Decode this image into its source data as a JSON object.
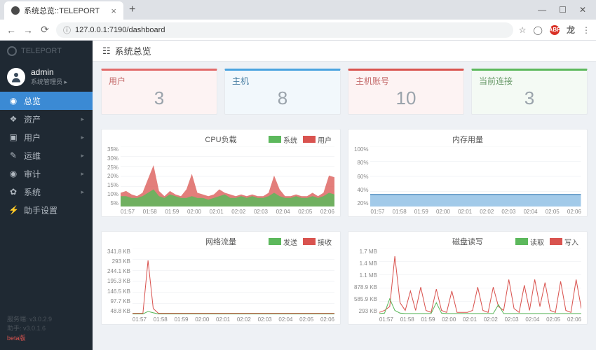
{
  "browser": {
    "tab_title": "系统总览::TELEPORT",
    "url": "127.0.0.1:7190/dashboard",
    "abp_badge": "ABP"
  },
  "sidebar": {
    "brand": "TELEPORT",
    "user": {
      "name": "admin",
      "role": "系统管理员 ▸"
    },
    "items": [
      {
        "icon": "◉",
        "label": "总览",
        "active": true
      },
      {
        "icon": "❖",
        "label": "资产 ▸"
      },
      {
        "icon": "▣",
        "label": "用户 ▸"
      },
      {
        "icon": "✎",
        "label": "运维 ▸"
      },
      {
        "icon": "◉",
        "label": "审计 ▸"
      },
      {
        "icon": "✿",
        "label": "系统 ▸"
      },
      {
        "icon": "⚡",
        "label": "助手设置"
      }
    ],
    "ver_server": "服务端: v3.0.2.9",
    "ver_client": "助手: v3.0.1.6",
    "beta": "beta版"
  },
  "page_title": "系统总览",
  "stats": [
    {
      "label": "用户",
      "value": "3",
      "border": "#e26a6a",
      "text": "#c46a6a",
      "bg": "#fdf3f3"
    },
    {
      "label": "主机",
      "value": "8",
      "border": "#4aa3df",
      "text": "#4a7fa3",
      "bg": "#f2f8fc"
    },
    {
      "label": "主机账号",
      "value": "10",
      "border": "#d9534f",
      "text": "#c46a6a",
      "bg": "#fdf3f3"
    },
    {
      "label": "当前连接",
      "value": "3",
      "border": "#5cb85c",
      "text": "#6a9a6a",
      "bg": "#f4faf4"
    }
  ],
  "charts": {
    "cpu": {
      "title": "CPU负载",
      "legend": [
        {
          "name": "系统",
          "color": "#5cb85c"
        },
        {
          "name": "用户",
          "color": "#d9534f"
        }
      ],
      "yticks": [
        "35%",
        "30%",
        "25%",
        "20%",
        "15%",
        "10%",
        "5%"
      ],
      "xticks": [
        "01:57",
        "01:58",
        "01:59",
        "02:00",
        "02:01",
        "02:02",
        "02:03",
        "02:04",
        "02:05",
        "02:06"
      ],
      "sys": [
        6,
        6,
        5,
        5,
        6,
        8,
        10,
        6,
        5,
        7,
        6,
        5,
        5,
        6,
        5,
        5,
        4,
        5,
        6,
        7,
        5,
        5,
        6,
        5,
        6,
        5,
        5,
        6,
        8,
        6,
        5,
        5,
        6,
        5,
        5,
        6,
        5,
        6,
        8,
        7
      ],
      "usr": [
        8,
        9,
        7,
        6,
        8,
        16,
        24,
        9,
        6,
        9,
        7,
        6,
        10,
        19,
        8,
        7,
        6,
        7,
        10,
        8,
        7,
        6,
        7,
        6,
        7,
        6,
        6,
        8,
        18,
        10,
        6,
        6,
        7,
        6,
        6,
        8,
        6,
        8,
        18,
        17
      ],
      "ymax": 35,
      "grid": "#e8ebef"
    },
    "mem": {
      "title": "内存用量",
      "yticks": [
        "100%",
        "80%",
        "60%",
        "40%",
        "20%"
      ],
      "xticks": [
        "01:57",
        "01:58",
        "01:59",
        "02:00",
        "02:01",
        "02:02",
        "02:03",
        "02:04",
        "02:05",
        "02:06"
      ],
      "val": 20,
      "ymax": 100,
      "color": "#7bb3e0",
      "grid": "#e8ebef"
    },
    "net": {
      "title": "网络流量",
      "legend": [
        {
          "name": "发送",
          "color": "#5cb85c"
        },
        {
          "name": "接收",
          "color": "#d9534f"
        }
      ],
      "yticks": [
        "341.8 KB",
        "293 KB",
        "244.1 KB",
        "195.3 KB",
        "146.5 KB",
        "97.7 KB",
        "48.8 KB"
      ],
      "xticks": [
        "01:57",
        "01:58",
        "01:59",
        "02:00",
        "02:01",
        "02:02",
        "02:03",
        "02:04",
        "02:05",
        "02:06"
      ],
      "recv": [
        5,
        5,
        5,
        280,
        30,
        5,
        5,
        5,
        5,
        5,
        5,
        5,
        5,
        5,
        5,
        5,
        5,
        5,
        5,
        5,
        5,
        5,
        5,
        5,
        5,
        5,
        5,
        5,
        5,
        5,
        5,
        5,
        5,
        5,
        5,
        5,
        5,
        5,
        5,
        5
      ],
      "send": [
        2,
        2,
        2,
        15,
        8,
        2,
        2,
        2,
        2,
        2,
        2,
        2,
        2,
        2,
        2,
        2,
        2,
        2,
        2,
        2,
        2,
        2,
        2,
        2,
        2,
        2,
        2,
        2,
        2,
        2,
        2,
        2,
        2,
        2,
        2,
        2,
        2,
        2,
        2,
        2
      ],
      "ymax": 342,
      "grid": "#e8ebef"
    },
    "disk": {
      "title": "磁盘读写",
      "legend": [
        {
          "name": "读取",
          "color": "#5cb85c"
        },
        {
          "name": "写入",
          "color": "#d9534f"
        }
      ],
      "yticks": [
        "1.7 MB",
        "1.4 MB",
        "1.1 MB",
        "878.9 KB",
        "585.9 KB",
        "293 KB"
      ],
      "xticks": [
        "01:57",
        "01:58",
        "01:59",
        "02:00",
        "02:01",
        "02:02",
        "02:03",
        "02:04",
        "02:05",
        "02:06"
      ],
      "write": [
        50,
        100,
        200,
        1500,
        300,
        100,
        600,
        100,
        700,
        100,
        50,
        650,
        100,
        50,
        600,
        50,
        50,
        50,
        100,
        700,
        100,
        50,
        700,
        200,
        100,
        900,
        150,
        50,
        750,
        100,
        900,
        200,
        820,
        100,
        50,
        850,
        100,
        50,
        900,
        150
      ],
      "read": [
        20,
        30,
        400,
        100,
        30,
        20,
        20,
        20,
        20,
        20,
        20,
        300,
        30,
        20,
        20,
        20,
        20,
        20,
        20,
        20,
        20,
        20,
        20,
        250,
        20,
        20,
        20,
        20,
        20,
        20,
        20,
        20,
        20,
        20,
        20,
        20,
        20,
        20,
        20,
        20
      ],
      "ymax": 1700,
      "grid": "#e8ebef"
    }
  }
}
